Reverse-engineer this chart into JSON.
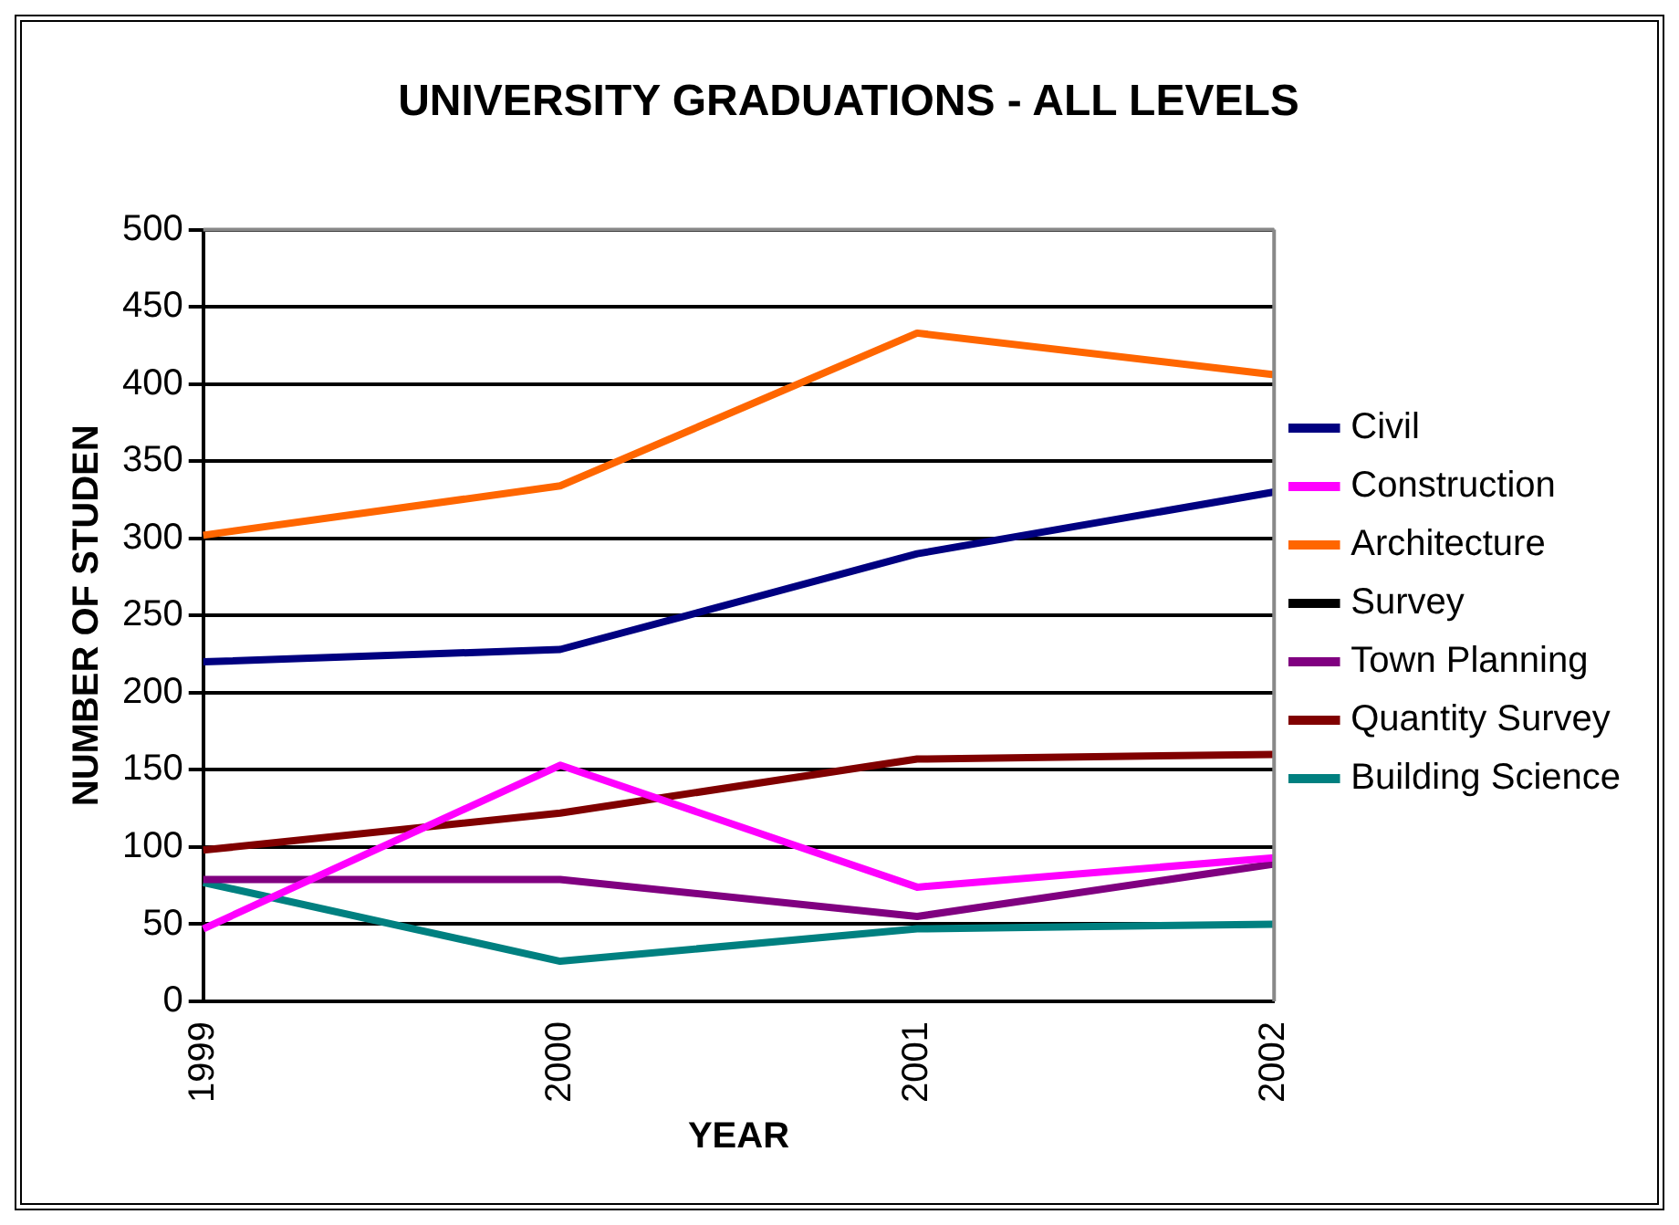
{
  "chart_data": {
    "type": "line",
    "title": "UNIVERSITY GRADUATIONS - ALL LEVELS",
    "xlabel": "YEAR",
    "ylabel": "NUMBER OF STUDEN",
    "categories": [
      "1999",
      "2000",
      "2001",
      "2002"
    ],
    "series": [
      {
        "name": "Civil",
        "color": "#000080",
        "values": [
          220,
          228,
          290,
          330
        ]
      },
      {
        "name": "Construction",
        "color": "#ff00ff",
        "values": [
          47,
          153,
          74,
          93
        ]
      },
      {
        "name": "Architecture",
        "color": "#ff6600",
        "values": [
          302,
          334,
          433,
          406
        ]
      },
      {
        "name": "Survey",
        "color": "#000000",
        "values": [
          null,
          null,
          null,
          null
        ]
      },
      {
        "name": "Town Planning",
        "color": "#800080",
        "values": [
          79,
          79,
          55,
          89
        ]
      },
      {
        "name": "Quantity Survey",
        "color": "#800000",
        "values": [
          98,
          122,
          157,
          160
        ]
      },
      {
        "name": "Building Science",
        "color": "#008080",
        "values": [
          77,
          26,
          47,
          50
        ]
      }
    ],
    "ylim": [
      0,
      500
    ],
    "yticks": [
      0,
      50,
      100,
      150,
      200,
      250,
      300,
      350,
      400,
      450,
      500
    ],
    "grid": "y",
    "legend": "right",
    "marker": "none",
    "line_style": "solid"
  }
}
